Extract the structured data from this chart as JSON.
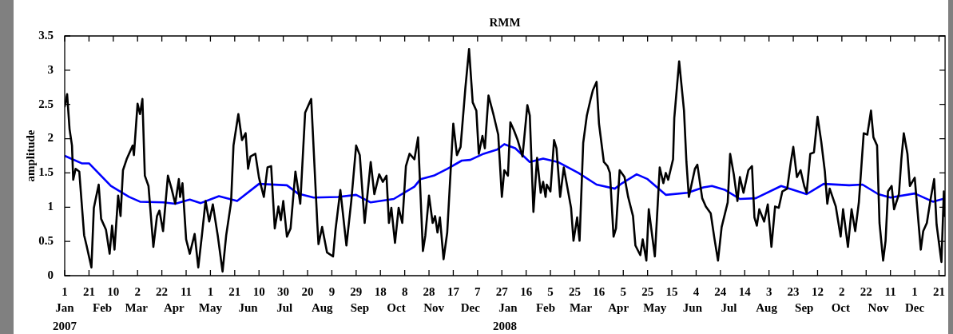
{
  "chart_data": {
    "type": "line",
    "title": "RMM",
    "ylabel": "amplitude",
    "xlim": [
      "2007-01-01",
      "2008-12-26"
    ],
    "ylim": [
      0,
      3.5
    ],
    "yticks": [
      0,
      0.5,
      1,
      1.5,
      2,
      2.5,
      3,
      3.5
    ],
    "xticks": [
      {
        "value": "2007-01-01",
        "label": "1"
      },
      {
        "value": "2007-01-21",
        "label": "21"
      },
      {
        "value": "2007-02-10",
        "label": "10"
      },
      {
        "value": "2007-03-02",
        "label": "2"
      },
      {
        "value": "2007-03-22",
        "label": "22"
      },
      {
        "value": "2007-04-11",
        "label": "11"
      },
      {
        "value": "2007-05-01",
        "label": "1"
      },
      {
        "value": "2007-05-21",
        "label": "21"
      },
      {
        "value": "2007-06-10",
        "label": "10"
      },
      {
        "value": "2007-06-30",
        "label": "30"
      },
      {
        "value": "2007-07-20",
        "label": "20"
      },
      {
        "value": "2007-08-09",
        "label": "9"
      },
      {
        "value": "2007-08-29",
        "label": "29"
      },
      {
        "value": "2007-09-18",
        "label": "18"
      },
      {
        "value": "2007-10-08",
        "label": "8"
      },
      {
        "value": "2007-10-28",
        "label": "28"
      },
      {
        "value": "2007-11-17",
        "label": "17"
      },
      {
        "value": "2007-12-07",
        "label": "7"
      },
      {
        "value": "2007-12-27",
        "label": "27"
      },
      {
        "value": "2008-01-16",
        "label": "16"
      },
      {
        "value": "2008-02-05",
        "label": "5"
      },
      {
        "value": "2008-02-25",
        "label": "25"
      },
      {
        "value": "2008-03-16",
        "label": "16"
      },
      {
        "value": "2008-04-05",
        "label": "5"
      },
      {
        "value": "2008-04-25",
        "label": "25"
      },
      {
        "value": "2008-05-15",
        "label": "15"
      },
      {
        "value": "2008-06-04",
        "label": "4"
      },
      {
        "value": "2008-06-24",
        "label": "24"
      },
      {
        "value": "2008-07-14",
        "label": "14"
      },
      {
        "value": "2008-08-03",
        "label": "3"
      },
      {
        "value": "2008-08-23",
        "label": "23"
      },
      {
        "value": "2008-09-12",
        "label": "12"
      },
      {
        "value": "2008-10-02",
        "label": "2"
      },
      {
        "value": "2008-10-22",
        "label": "22"
      },
      {
        "value": "2008-11-11",
        "label": "11"
      },
      {
        "value": "2008-12-01",
        "label": "1"
      },
      {
        "value": "2008-12-21",
        "label": "21"
      }
    ],
    "x2ticks": [
      {
        "value": "2007-01-01",
        "label": "Jan"
      },
      {
        "value": "2007-02-01",
        "label": "Feb"
      },
      {
        "value": "2007-03-01",
        "label": "Mar"
      },
      {
        "value": "2007-04-01",
        "label": "Apr"
      },
      {
        "value": "2007-05-01",
        "label": "May"
      },
      {
        "value": "2007-06-01",
        "label": "Jun"
      },
      {
        "value": "2007-07-01",
        "label": "Jul"
      },
      {
        "value": "2007-08-01",
        "label": "Aug"
      },
      {
        "value": "2007-09-01",
        "label": "Sep"
      },
      {
        "value": "2007-10-01",
        "label": "Oct"
      },
      {
        "value": "2007-11-01",
        "label": "Nov"
      },
      {
        "value": "2007-12-01",
        "label": "Dec"
      },
      {
        "value": "2008-01-01",
        "label": "Jan"
      },
      {
        "value": "2008-02-01",
        "label": "Feb"
      },
      {
        "value": "2008-03-01",
        "label": "Mar"
      },
      {
        "value": "2008-04-01",
        "label": "Apr"
      },
      {
        "value": "2008-05-01",
        "label": "May"
      },
      {
        "value": "2008-06-01",
        "label": "Jun"
      },
      {
        "value": "2008-07-01",
        "label": "Jul"
      },
      {
        "value": "2008-08-01",
        "label": "Aug"
      },
      {
        "value": "2008-09-01",
        "label": "Sep"
      },
      {
        "value": "2008-10-01",
        "label": "Oct"
      },
      {
        "value": "2008-11-01",
        "label": "Nov"
      },
      {
        "value": "2008-12-01",
        "label": "Dec"
      }
    ],
    "x2lim": [
      "2007-01-01",
      "2008-12-26"
    ],
    "annotations": [
      "2007",
      "2008"
    ],
    "grid": false,
    "legend": false,
    "line_style": "solid",
    "marker": "none",
    "series": [
      {
        "color": "#000000",
        "x": [
          "2007-01-01",
          "2007-01-03",
          "2007-01-05",
          "2007-01-07",
          "2007-01-08",
          "2007-01-10",
          "2007-01-13",
          "2007-01-17",
          "2007-01-19",
          "2007-01-23",
          "2007-01-25",
          "2007-01-29",
          "2007-01-31",
          "2007-02-04",
          "2007-02-07",
          "2007-02-09",
          "2007-02-11",
          "2007-02-14",
          "2007-02-16",
          "2007-02-18",
          "2007-02-21",
          "2007-02-26",
          "2007-02-27",
          "2007-03-02",
          "2007-03-04",
          "2007-03-06",
          "2007-03-08",
          "2007-03-11",
          "2007-03-15",
          "2007-03-18",
          "2007-03-20",
          "2007-03-23",
          "2007-03-27",
          "2007-03-30",
          "2007-04-02",
          "2007-04-05",
          "2007-04-06",
          "2007-04-08",
          "2007-04-11",
          "2007-04-14",
          "2007-04-18",
          "2007-04-21",
          "2007-04-24",
          "2007-04-27",
          "2007-04-30",
          "2007-05-03",
          "2007-05-07",
          "2007-05-11",
          "2007-05-14",
          "2007-05-18",
          "2007-05-20",
          "2007-05-24",
          "2007-05-27",
          "2007-05-30",
          "2007-06-01",
          "2007-06-03",
          "2007-06-07",
          "2007-06-10",
          "2007-06-14",
          "2007-06-17",
          "2007-06-20",
          "2007-06-23",
          "2007-06-26",
          "2007-06-28",
          "2007-06-30",
          "2007-07-03",
          "2007-07-06",
          "2007-07-10",
          "2007-07-14",
          "2007-07-18",
          "2007-07-23",
          "2007-07-28",
          "2007-07-29",
          "2007-08-01",
          "2007-08-05",
          "2007-08-10",
          "2007-08-12",
          "2007-08-16",
          "2007-08-21",
          "2007-08-25",
          "2007-08-29",
          "2007-09-01",
          "2007-09-05",
          "2007-09-10",
          "2007-09-13",
          "2007-09-17",
          "2007-09-20",
          "2007-09-23",
          "2007-09-25",
          "2007-09-27",
          "2007-09-30",
          "2007-10-03",
          "2007-10-06",
          "2007-10-09",
          "2007-10-12",
          "2007-10-16",
          "2007-10-19",
          "2007-10-23",
          "2007-10-25",
          "2007-10-28",
          "2007-10-31",
          "2007-11-02",
          "2007-11-04",
          "2007-11-06",
          "2007-11-09",
          "2007-11-12",
          "2007-11-17",
          "2007-11-20",
          "2007-11-23",
          "2007-11-27",
          "2007-11-30",
          "2007-12-03",
          "2007-12-06",
          "2007-12-08",
          "2007-12-11",
          "2007-12-13",
          "2007-12-16",
          "2007-12-20",
          "2007-12-24",
          "2007-12-27",
          "2007-12-29",
          "2008-01-01",
          "2008-01-03",
          "2008-01-06",
          "2008-01-09",
          "2008-01-13",
          "2008-01-17",
          "2008-01-19",
          "2008-01-22",
          "2008-01-25",
          "2008-01-28",
          "2008-01-30",
          "2008-02-01",
          "2008-02-02",
          "2008-02-05",
          "2008-02-08",
          "2008-02-10",
          "2008-02-13",
          "2008-02-16",
          "2008-02-22",
          "2008-02-24",
          "2008-02-27",
          "2008-02-29",
          "2008-03-03",
          "2008-03-06",
          "2008-03-09",
          "2008-03-11",
          "2008-03-14",
          "2008-03-16",
          "2008-03-20",
          "2008-03-23",
          "2008-03-25",
          "2008-03-28",
          "2008-03-30",
          "2008-04-02",
          "2008-04-06",
          "2008-04-09",
          "2008-04-13",
          "2008-04-15",
          "2008-04-19",
          "2008-04-21",
          "2008-04-24",
          "2008-04-26",
          "2008-05-01",
          "2008-05-05",
          "2008-05-08",
          "2008-05-10",
          "2008-05-12",
          "2008-05-16",
          "2008-05-17",
          "2008-05-21",
          "2008-05-25",
          "2008-05-27",
          "2008-05-29",
          "2008-06-03",
          "2008-06-05",
          "2008-06-09",
          "2008-06-12",
          "2008-06-16",
          "2008-06-19",
          "2008-06-22",
          "2008-06-25",
          "2008-06-30",
          "2008-07-02",
          "2008-07-05",
          "2008-07-08",
          "2008-07-10",
          "2008-07-13",
          "2008-07-17",
          "2008-07-20",
          "2008-07-22",
          "2008-07-24",
          "2008-07-26",
          "2008-07-30",
          "2008-08-02",
          "2008-08-05",
          "2008-08-08",
          "2008-08-11",
          "2008-08-14",
          "2008-08-18",
          "2008-08-21",
          "2008-08-23",
          "2008-08-26",
          "2008-08-29",
          "2008-09-01",
          "2008-09-03",
          "2008-09-06",
          "2008-09-09",
          "2008-09-12",
          "2008-09-15",
          "2008-09-18",
          "2008-09-20",
          "2008-09-22",
          "2008-09-27",
          "2008-10-01",
          "2008-10-03",
          "2008-10-07",
          "2008-10-10",
          "2008-10-13",
          "2008-10-16",
          "2008-10-20",
          "2008-10-23",
          "2008-10-26",
          "2008-10-28",
          "2008-10-31",
          "2008-11-02",
          "2008-11-05",
          "2008-11-07",
          "2008-11-09",
          "2008-11-12",
          "2008-11-14",
          "2008-11-18",
          "2008-11-20",
          "2008-11-22",
          "2008-11-25",
          "2008-11-27",
          "2008-12-01",
          "2008-12-06",
          "2008-12-08",
          "2008-12-11",
          "2008-12-14",
          "2008-12-17",
          "2008-12-19",
          "2008-12-23",
          "2008-12-25",
          "2008-12-26"
        ],
        "values": [
          2.47,
          2.65,
          2.14,
          1.9,
          1.4,
          1.56,
          1.52,
          0.59,
          0.44,
          0.12,
          0.99,
          1.33,
          0.83,
          0.67,
          0.32,
          0.73,
          0.38,
          1.17,
          0.87,
          1.54,
          1.7,
          1.9,
          1.76,
          2.51,
          2.36,
          2.58,
          1.46,
          1.31,
          0.42,
          0.87,
          0.95,
          0.65,
          1.46,
          1.27,
          1.05,
          1.41,
          1.15,
          1.35,
          0.53,
          0.32,
          0.61,
          0.12,
          0.59,
          1.09,
          0.79,
          1.04,
          0.59,
          0.06,
          0.59,
          1.07,
          1.9,
          2.36,
          1.98,
          2.08,
          1.56,
          1.74,
          1.78,
          1.43,
          1.15,
          1.58,
          1.6,
          0.69,
          1.01,
          0.81,
          1.09,
          0.57,
          0.69,
          1.52,
          1.05,
          2.38,
          2.58,
          0.77,
          0.46,
          0.71,
          0.34,
          0.28,
          0.67,
          1.25,
          0.44,
          1.09,
          1.9,
          1.76,
          0.77,
          1.66,
          1.19,
          1.48,
          1.37,
          1.46,
          0.77,
          0.99,
          0.48,
          0.99,
          0.77,
          1.6,
          1.78,
          1.7,
          2.02,
          0.36,
          0.59,
          1.17,
          0.77,
          0.87,
          0.63,
          0.85,
          0.24,
          0.63,
          2.22,
          1.76,
          1.88,
          2.75,
          3.31,
          2.53,
          2.41,
          1.78,
          2.04,
          1.86,
          2.63,
          2.36,
          2.06,
          1.15,
          1.54,
          1.46,
          2.24,
          2.12,
          1.98,
          1.74,
          2.49,
          2.34,
          0.93,
          1.72,
          1.21,
          1.37,
          1.15,
          1.33,
          1.23,
          1.98,
          1.86,
          1.15,
          1.58,
          0.99,
          0.51,
          0.85,
          0.51,
          1.94,
          2.34,
          2.57,
          2.71,
          2.83,
          2.22,
          1.66,
          1.6,
          1.5,
          0.57,
          0.69,
          1.54,
          1.44,
          1.15,
          0.87,
          0.44,
          0.3,
          0.53,
          0.22,
          0.97,
          0.28,
          1.58,
          1.35,
          1.5,
          1.4,
          1.7,
          2.3,
          3.13,
          2.41,
          1.66,
          1.15,
          1.56,
          1.62,
          1.13,
          1.01,
          0.91,
          0.55,
          0.22,
          0.71,
          1.07,
          1.78,
          1.48,
          1.09,
          1.44,
          1.21,
          1.54,
          1.6,
          0.85,
          0.73,
          0.97,
          0.79,
          1.04,
          0.42,
          1.01,
          0.99,
          1.23,
          1.27,
          1.66,
          1.88,
          1.44,
          1.54,
          1.31,
          1.21,
          1.78,
          1.8,
          2.32,
          1.96,
          1.52,
          1.05,
          1.27,
          1.01,
          0.57,
          0.97,
          0.42,
          0.97,
          0.65,
          1.07,
          2.08,
          2.06,
          2.41,
          2.02,
          1.9,
          0.77,
          0.22,
          0.51,
          1.23,
          1.31,
          0.97,
          1.19,
          1.7,
          2.08,
          1.78,
          1.31,
          1.43,
          0.38,
          0.65,
          0.77,
          1.11,
          1.41,
          0.75,
          0.2,
          1.23,
          0.87
        ]
      },
      {
        "color": "#0000ff",
        "x": [
          "2007-01-01",
          "2007-01-15",
          "2007-01-21",
          "2007-02-08",
          "2007-02-23",
          "2007-03-04",
          "2007-03-23",
          "2007-04-02",
          "2007-04-14",
          "2007-04-23",
          "2007-05-08",
          "2007-05-23",
          "2007-06-10",
          "2007-07-03",
          "2007-07-12",
          "2007-07-25",
          "2007-08-14",
          "2007-08-29",
          "2007-09-10",
          "2007-09-29",
          "2007-10-16",
          "2007-10-21",
          "2007-11-01",
          "2007-11-12",
          "2007-11-24",
          "2007-12-01",
          "2007-12-12",
          "2007-12-23",
          "2007-12-29",
          "2008-01-07",
          "2008-01-19",
          "2008-01-30",
          "2008-02-11",
          "2008-02-28",
          "2008-03-14",
          "2008-03-29",
          "2008-04-04",
          "2008-04-16",
          "2008-04-25",
          "2008-05-10",
          "2008-05-28",
          "2008-06-10",
          "2008-06-17",
          "2008-06-28",
          "2008-07-10",
          "2008-07-23",
          "2008-08-13",
          "2008-09-03",
          "2008-09-17",
          "2008-10-08",
          "2008-10-19",
          "2008-11-01",
          "2008-11-11",
          "2008-12-01",
          "2008-12-16",
          "2008-12-26"
        ],
        "values": [
          1.75,
          1.64,
          1.64,
          1.31,
          1.15,
          1.08,
          1.07,
          1.05,
          1.11,
          1.06,
          1.16,
          1.09,
          1.34,
          1.32,
          1.2,
          1.14,
          1.15,
          1.18,
          1.07,
          1.12,
          1.3,
          1.41,
          1.46,
          1.56,
          1.68,
          1.69,
          1.78,
          1.84,
          1.92,
          1.86,
          1.66,
          1.71,
          1.66,
          1.5,
          1.33,
          1.27,
          1.35,
          1.48,
          1.41,
          1.18,
          1.21,
          1.29,
          1.31,
          1.25,
          1.12,
          1.13,
          1.31,
          1.19,
          1.34,
          1.32,
          1.33,
          1.19,
          1.14,
          1.2,
          1.08,
          1.13
        ]
      }
    ]
  }
}
